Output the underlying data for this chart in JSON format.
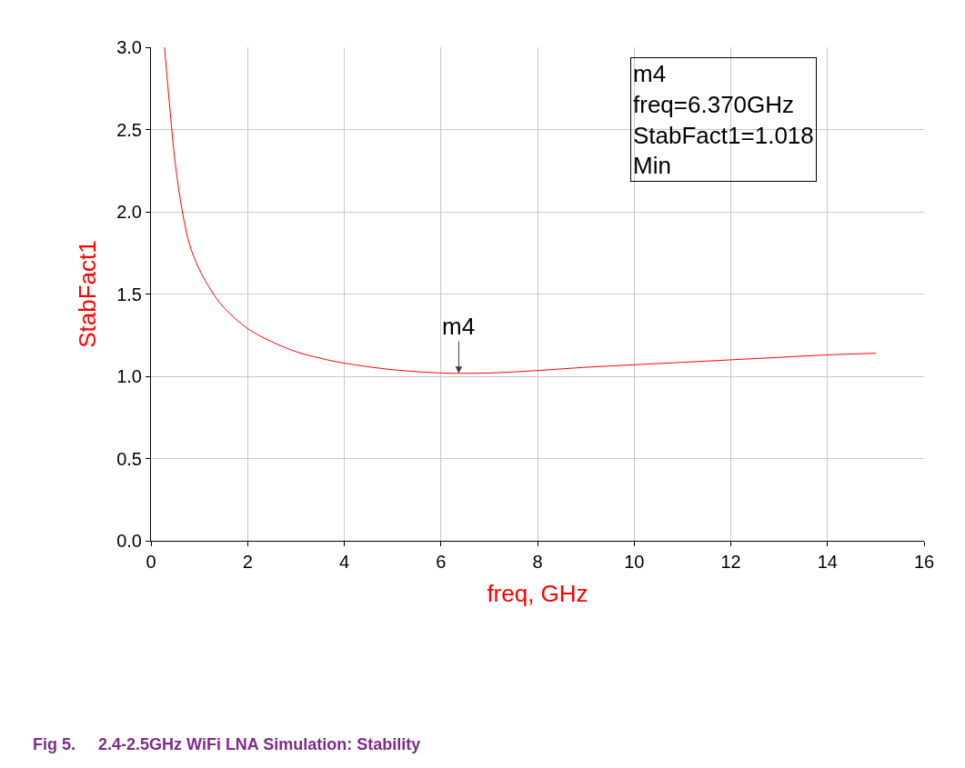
{
  "chart_data": {
    "type": "line",
    "xlabel": "freq, GHz",
    "ylabel": "StabFact1",
    "x": [
      0.28,
      0.4,
      0.5,
      0.65,
      0.8,
      1.0,
      1.25,
      1.5,
      2,
      2.5,
      3,
      3.5,
      4,
      5,
      6,
      6.37,
      7,
      8,
      9,
      10,
      11,
      12,
      13,
      14,
      15
    ],
    "series": [
      {
        "color": "#ff0000",
        "values": [
          3.0,
          2.6,
          2.3,
          2.0,
          1.8,
          1.65,
          1.52,
          1.42,
          1.29,
          1.21,
          1.15,
          1.11,
          1.08,
          1.04,
          1.02,
          1.018,
          1.02,
          1.035,
          1.055,
          1.07,
          1.085,
          1.1,
          1.115,
          1.13,
          1.14
        ]
      }
    ],
    "xlim": [
      0,
      16
    ],
    "xticks": [
      0,
      2,
      4,
      6,
      8,
      10,
      12,
      14,
      16
    ],
    "ylim": [
      0,
      3
    ],
    "yticks": [
      {
        "value": 0,
        "label": "0.0"
      },
      {
        "value": 0.5,
        "label": "0.5"
      },
      {
        "value": 1,
        "label": "1.0"
      },
      {
        "value": 1.5,
        "label": "1.5"
      },
      {
        "value": 2,
        "label": "2.0"
      },
      {
        "value": 2.5,
        "label": "2.5"
      },
      {
        "value": 3,
        "label": "3.0"
      }
    ],
    "grid": true,
    "legend": false,
    "marker": "none",
    "line_style": "solid",
    "annotations": [
      {
        "text": "m4",
        "x": 6.37,
        "y": 1.018
      },
      "m4\nfreq=6.370GHz\nStabFact1=1.018\nMin",
      "Fig 5.     2.4-2.5GHz WiFi LNA Simulation: Stability"
    ]
  }
}
